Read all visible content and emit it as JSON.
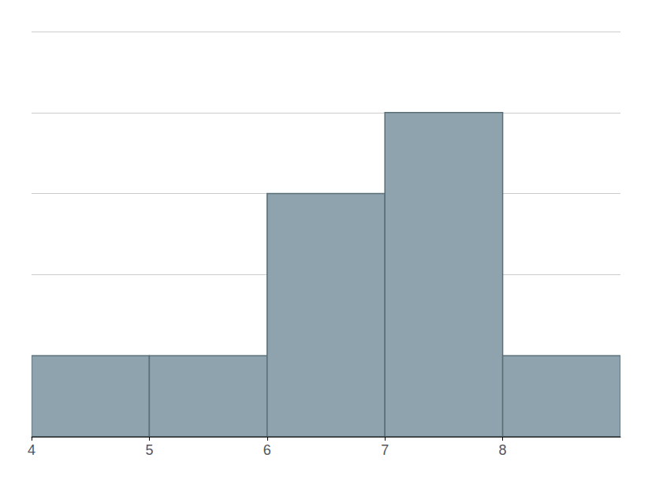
{
  "chart_data": {
    "type": "histogram",
    "bins": [
      4,
      5,
      6,
      7,
      8,
      9
    ],
    "values": [
      1,
      1,
      3,
      4,
      1
    ],
    "color": "#8fa3ae",
    "xlim": [
      4,
      9
    ],
    "xticks": [
      4,
      5,
      6,
      7,
      8
    ],
    "ylim": [
      0,
      5
    ],
    "yticks": [
      1,
      2,
      3,
      4,
      5
    ],
    "grid": true,
    "tick_labels": "x"
  }
}
